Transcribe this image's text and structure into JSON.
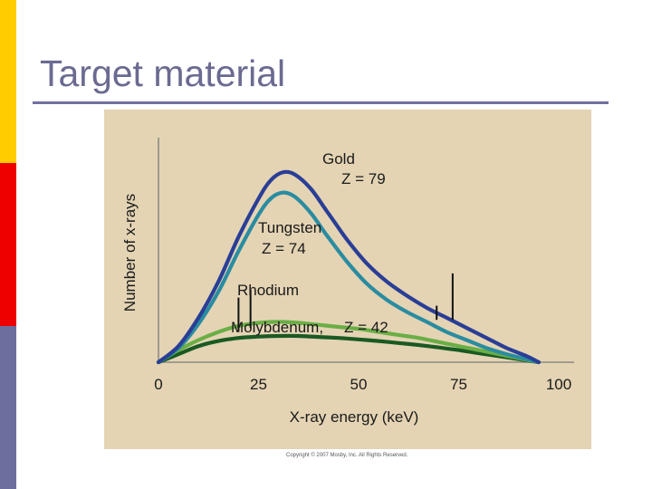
{
  "slide": {
    "title": "Target material",
    "credit": "Copyright © 2007 Mosby, Inc. All Rights Reserved."
  },
  "colors": {
    "gold": "#2A3E96",
    "tungsten": "#2A8CA0",
    "rhodium": "#1A5A22",
    "molybdenum": "#6AAE46",
    "panel": "#E4D4B4",
    "title": "#6A6A92"
  },
  "chart_data": {
    "type": "line",
    "title": "",
    "xlabel": "X-ray energy (keV)",
    "ylabel": "Number of x-rays",
    "xlim": [
      0,
      100
    ],
    "ylim": [
      0,
      100
    ],
    "x_ticks": [
      "0",
      "25",
      "50",
      "75",
      "100"
    ],
    "grid": false,
    "series": [
      {
        "name": "Gold",
        "label": "Gold",
        "z_label": "Z = 79",
        "color": "#2A3E96",
        "points": [
          [
            0,
            0
          ],
          [
            5,
            8
          ],
          [
            10,
            22
          ],
          [
            15,
            40
          ],
          [
            20,
            62
          ],
          [
            25,
            81
          ],
          [
            28,
            90
          ],
          [
            31,
            94
          ],
          [
            34,
            93
          ],
          [
            38,
            86
          ],
          [
            42,
            75
          ],
          [
            47,
            61
          ],
          [
            52,
            49
          ],
          [
            57,
            40
          ],
          [
            62,
            33
          ],
          [
            67,
            27
          ],
          [
            72,
            22
          ],
          [
            77,
            17
          ],
          [
            82,
            12
          ],
          [
            87,
            7
          ],
          [
            92,
            3
          ],
          [
            95,
            0
          ]
        ]
      },
      {
        "name": "Tungsten",
        "label": "Tungsten",
        "z_label": "Z = 74",
        "color": "#2A8CA0",
        "points": [
          [
            0,
            0
          ],
          [
            5,
            7
          ],
          [
            10,
            19
          ],
          [
            15,
            35
          ],
          [
            20,
            55
          ],
          [
            25,
            73
          ],
          [
            28,
            81
          ],
          [
            31,
            84
          ],
          [
            34,
            82
          ],
          [
            38,
            74
          ],
          [
            42,
            63
          ],
          [
            47,
            50
          ],
          [
            52,
            39
          ],
          [
            57,
            31
          ],
          [
            62,
            25
          ],
          [
            67,
            20
          ],
          [
            72,
            15
          ],
          [
            77,
            11
          ],
          [
            82,
            7
          ],
          [
            87,
            4
          ],
          [
            92,
            1.5
          ],
          [
            95,
            0
          ]
        ]
      },
      {
        "name": "Molybdenum",
        "label": "Molybdenum,",
        "z_label": "Z = 42",
        "color": "#6AAE46",
        "points": [
          [
            0,
            0
          ],
          [
            5,
            6
          ],
          [
            10,
            11
          ],
          [
            15,
            15
          ],
          [
            20,
            18
          ],
          [
            25,
            19.5
          ],
          [
            30,
            20
          ],
          [
            35,
            19.5
          ],
          [
            40,
            18.5
          ],
          [
            45,
            17.5
          ],
          [
            50,
            16.5
          ],
          [
            55,
            15
          ],
          [
            60,
            13.5
          ],
          [
            65,
            12
          ],
          [
            70,
            10
          ],
          [
            75,
            8
          ],
          [
            80,
            6
          ],
          [
            85,
            4
          ],
          [
            90,
            2
          ],
          [
            95,
            0
          ]
        ]
      },
      {
        "name": "Rhodium",
        "label": "Rhodium",
        "z_label": "",
        "color": "#1A5A22",
        "points": [
          [
            0,
            0
          ],
          [
            5,
            4
          ],
          [
            10,
            8
          ],
          [
            15,
            10.5
          ],
          [
            20,
            12
          ],
          [
            25,
            12.7
          ],
          [
            30,
            13
          ],
          [
            35,
            13
          ],
          [
            40,
            12.5
          ],
          [
            45,
            12
          ],
          [
            50,
            11.3
          ],
          [
            55,
            10.5
          ],
          [
            60,
            9.5
          ],
          [
            65,
            8.5
          ],
          [
            70,
            7.3
          ],
          [
            75,
            6
          ],
          [
            80,
            4.5
          ],
          [
            85,
            3
          ],
          [
            90,
            1.5
          ],
          [
            95,
            0
          ]
        ]
      }
    ],
    "annotations": [
      {
        "name": "molybdenum-k-edge",
        "x": 20,
        "y_bottom": 15,
        "y_top": 32
      },
      {
        "name": "rhodium-k-edge",
        "x": 23,
        "y_bottom": 17,
        "y_top": 36
      },
      {
        "name": "tungsten-k-edge",
        "x": 69.5,
        "y_bottom": 21,
        "y_top": 28
      },
      {
        "name": "gold-k-edge",
        "x": 73.5,
        "y_bottom": 21,
        "y_top": 44
      }
    ]
  }
}
